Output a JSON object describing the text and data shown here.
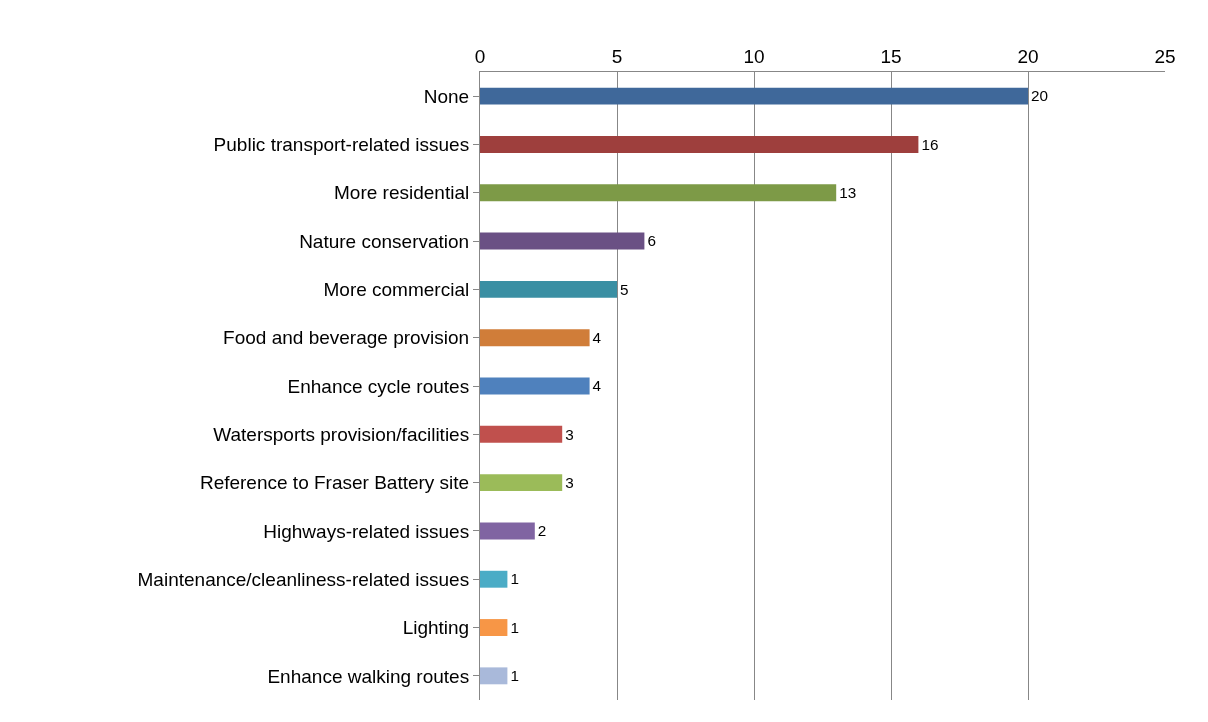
{
  "chart_data": {
    "type": "bar",
    "orientation": "horizontal",
    "categories": [
      "None",
      "Public transport-related issues",
      "More residential",
      "Nature conservation",
      "More commercial",
      "Food and beverage provision",
      "Enhance cycle routes",
      "Watersports provision/facilities",
      "Reference to Fraser Battery site",
      "Highways-related issues",
      "Maintenance/cleanliness-related issues",
      "Lighting",
      "Enhance walking routes"
    ],
    "values": [
      20,
      16,
      13,
      6,
      5,
      4,
      4,
      3,
      3,
      2,
      1,
      1,
      1
    ],
    "colors": [
      "#3f689a",
      "#9e3f3d",
      "#7d9a47",
      "#6a5084",
      "#3a8fa3",
      "#d07d39",
      "#4f81bd",
      "#c0504d",
      "#9bbb59",
      "#8064a2",
      "#4bacc6",
      "#f79646",
      "#a9b9da"
    ],
    "xlim": [
      0,
      25
    ],
    "xticks": [
      0,
      5,
      10,
      15,
      20,
      25
    ],
    "grid": "x",
    "data_labels": true,
    "legend": false
  }
}
